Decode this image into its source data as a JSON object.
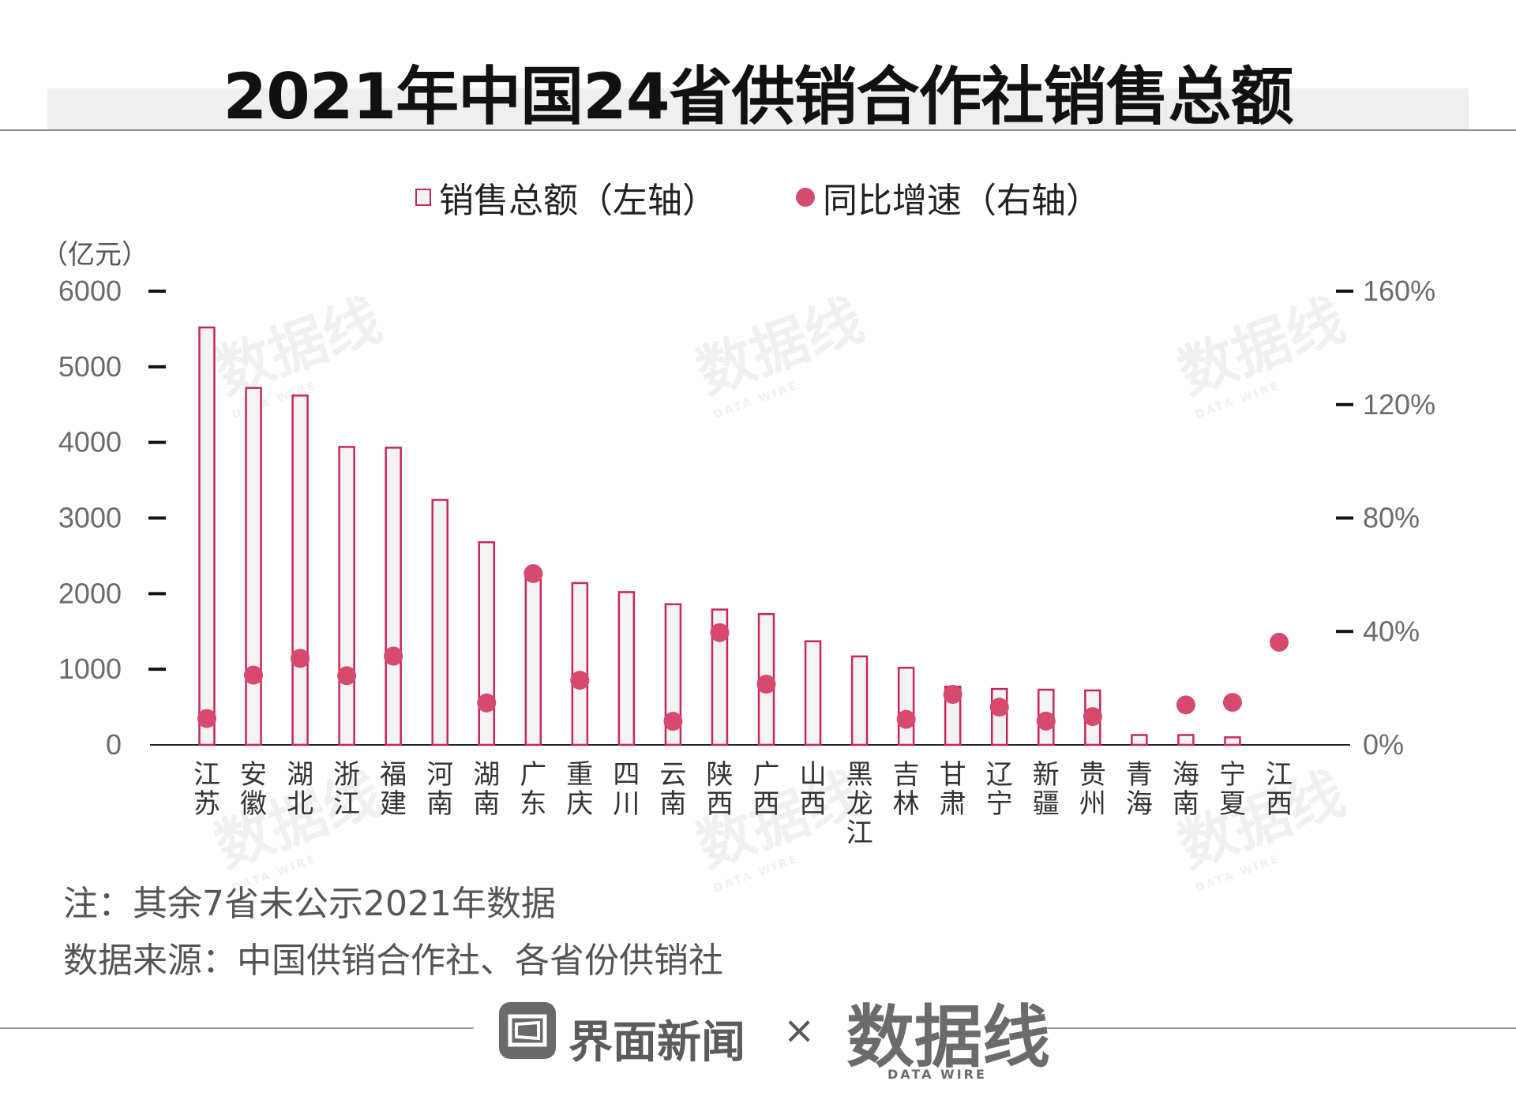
{
  "title": "2021年中国24省供销合作社销售总额",
  "legend": {
    "bars_label": "销售总额（左轴）",
    "dots_label": "同比增速（右轴）"
  },
  "left_axis_unit": "（亿元）",
  "notes": {
    "note": "注：其余7省未公示2021年数据",
    "source": "数据来源：中国供销合作社、各省份供销社"
  },
  "footer": {
    "brand": "界面新闻",
    "cross": "×",
    "datawire_logo": "数据线",
    "datawire_sub": "DATA WIRE"
  },
  "watermark": {
    "logo": "数据线",
    "sub": "DATA WIRE"
  },
  "colors": {
    "bar_stroke": "#c8265b",
    "bar_fill": "#f3f3f3",
    "dot": "#d54a6e",
    "axis": "#222222"
  },
  "chart_data": {
    "type": "bar",
    "title": "2021年中国24省供销合作社销售总额",
    "categories": [
      "江苏",
      "安徽",
      "湖北",
      "浙江",
      "福建",
      "河南",
      "湖南",
      "广东",
      "重庆",
      "四川",
      "云南",
      "陕西",
      "广西",
      "山西",
      "黑龙江",
      "吉林",
      "甘肃",
      "辽宁",
      "新疆",
      "贵州",
      "青海",
      "海南",
      "宁夏",
      "江西"
    ],
    "series": [
      {
        "name": "销售总额（左轴）",
        "axis": "left",
        "unit": "亿元",
        "values": [
          5520,
          4720,
          4620,
          3940,
          3930,
          3240,
          2680,
          2220,
          2140,
          2020,
          1860,
          1790,
          1730,
          1370,
          1170,
          1020,
          770,
          740,
          730,
          720,
          130,
          130,
          100,
          null
        ]
      },
      {
        "name": "同比增速（右轴）",
        "axis": "right",
        "unit": "%",
        "values": [
          9.3,
          24.6,
          30.5,
          24.4,
          31.3,
          null,
          14.8,
          60.4,
          22.8,
          null,
          8.3,
          39.6,
          21.4,
          null,
          null,
          9.0,
          17.8,
          13.3,
          8.4,
          10.0,
          null,
          14.1,
          15.0,
          36.2
        ]
      }
    ],
    "left_axis": {
      "ylim": [
        0,
        6000
      ],
      "ticks": [
        "0",
        "1000",
        "2000",
        "3000",
        "4000",
        "5000",
        "6000"
      ],
      "tick_values": [
        0,
        1000,
        2000,
        3000,
        4000,
        5000,
        6000
      ]
    },
    "right_axis": {
      "ylim": [
        0,
        160
      ],
      "ticks": [
        "0%",
        "40%",
        "80%",
        "120%",
        "160%"
      ],
      "tick_values": [
        0,
        40,
        80,
        120,
        160
      ]
    },
    "legend_position": "top-center"
  }
}
